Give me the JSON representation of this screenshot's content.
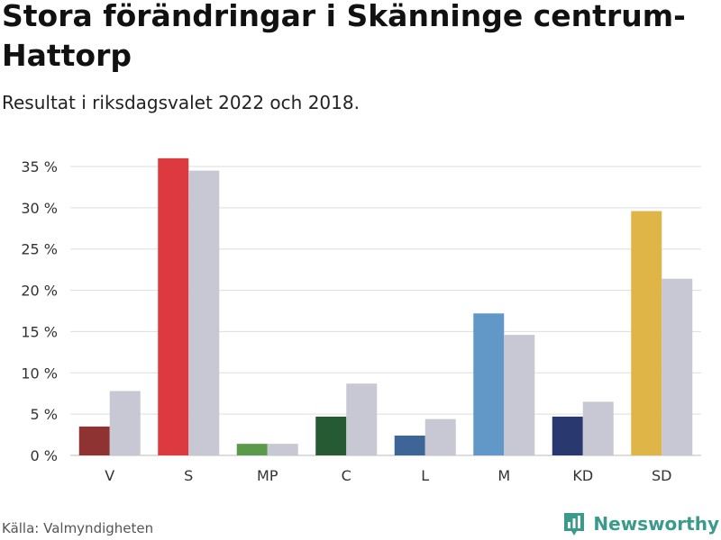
{
  "header": {
    "title": "Stora förändringar i Skänninge centrum-Hattorp",
    "subtitle": "Resultat i riksdagsvalet 2022 och 2018."
  },
  "footer": {
    "source": "Källa: Valmyndigheten",
    "brand": "Newsworthy",
    "brand_icon": "bar-chart-logo-icon",
    "brand_color": "#3a9a8c"
  },
  "chart_data": {
    "type": "bar",
    "title": "Stora förändringar i Skänninge centrum-Hattorp",
    "subtitle": "Resultat i riksdagsvalet 2022 och 2018.",
    "xlabel": "",
    "ylabel": "",
    "categories": [
      "V",
      "S",
      "MP",
      "C",
      "L",
      "M",
      "KD",
      "SD"
    ],
    "series": [
      {
        "name": "2022",
        "values": [
          3.5,
          36.0,
          1.4,
          4.7,
          2.4,
          17.2,
          4.7,
          29.6
        ],
        "colors": [
          "#8e3232",
          "#dc3a3f",
          "#5a9a4a",
          "#255a32",
          "#3d6596",
          "#6298c8",
          "#2a3870",
          "#e0b548"
        ]
      },
      {
        "name": "2018",
        "values": [
          7.8,
          34.5,
          1.4,
          8.7,
          4.4,
          14.6,
          6.5,
          21.4
        ],
        "color": "#c8c8d4"
      }
    ],
    "ylim": [
      0,
      35
    ],
    "yticks": [
      0,
      5,
      10,
      15,
      20,
      25,
      30,
      35
    ],
    "ytick_labels": [
      "0 %",
      "5 %",
      "10 %",
      "15 %",
      "20 %",
      "25 %",
      "30 %",
      "35 %"
    ],
    "grid": true,
    "gridline_color": "#dddddd"
  }
}
